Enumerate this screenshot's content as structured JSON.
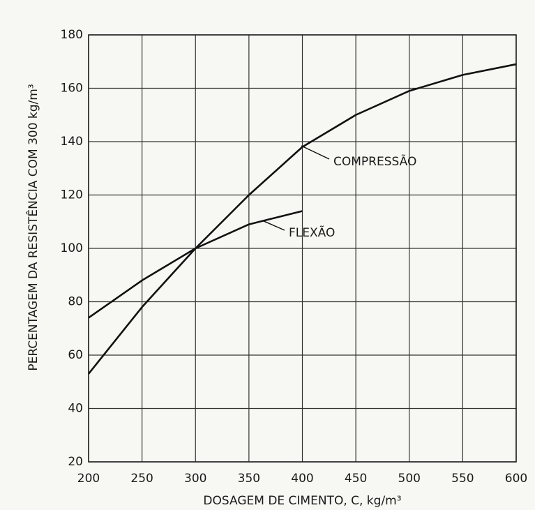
{
  "chart_data": {
    "type": "line",
    "x_label": "DOSAGEM DE CIMENTO, C, kg/m³",
    "y_label": "PERCENTAGEM DA RESISTÊNCIA COM 300 kg/m³",
    "x": [
      200,
      250,
      300,
      350,
      400,
      450,
      500,
      550,
      600
    ],
    "series": [
      {
        "name": "COMPRESSÃO",
        "color": "#111111",
        "values": [
          53,
          78,
          100,
          120,
          138,
          150,
          159,
          165,
          169
        ]
      },
      {
        "name": "FLEXÃO",
        "color": "#111111",
        "values": [
          74,
          88,
          100,
          109,
          114,
          null,
          null,
          null,
          null
        ]
      }
    ],
    "xlim": [
      200,
      600
    ],
    "ylim": [
      20,
      180
    ],
    "xticks": [
      200,
      250,
      300,
      350,
      400,
      450,
      500,
      550,
      600
    ],
    "yticks": [
      20,
      40,
      60,
      80,
      100,
      120,
      140,
      160,
      180
    ],
    "grid": true
  }
}
